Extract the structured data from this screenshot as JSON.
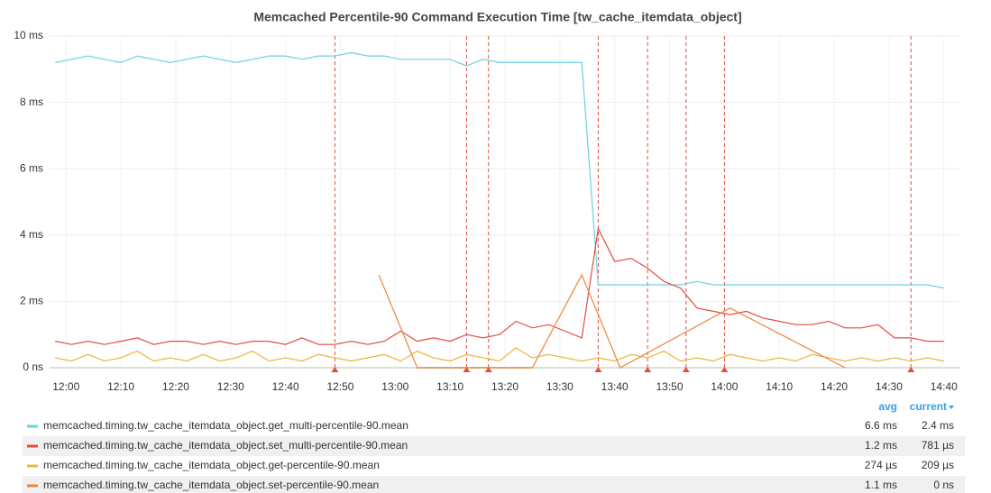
{
  "chart_data": {
    "type": "line",
    "title": "Memcached Percentile-90 Command Execution Time [tw_cache_itemdata_object]",
    "x": [
      "11:58",
      "12:01",
      "12:04",
      "12:07",
      "12:10",
      "12:13",
      "12:16",
      "12:19",
      "12:22",
      "12:25",
      "12:28",
      "12:31",
      "12:34",
      "12:37",
      "12:40",
      "12:43",
      "12:46",
      "12:49",
      "12:52",
      "12:55",
      "12:58",
      "13:01",
      "13:04",
      "13:07",
      "13:10",
      "13:13",
      "13:16",
      "13:19",
      "13:22",
      "13:25",
      "13:28",
      "13:31",
      "13:34",
      "13:37",
      "13:40",
      "13:43",
      "13:46",
      "13:49",
      "13:52",
      "13:55",
      "13:58",
      "14:01",
      "14:04",
      "14:07",
      "14:10",
      "14:13",
      "14:16",
      "14:19",
      "14:22",
      "14:25",
      "14:28",
      "14:31",
      "14:34",
      "14:37",
      "14:40"
    ],
    "series": [
      {
        "name": "memcached.timing.tw_cache_itemdata_object.get_multi-percentile-90.mean",
        "color": "#6ed0e0",
        "values": [
          9.2,
          9.3,
          9.4,
          9.3,
          9.2,
          9.4,
          9.3,
          9.2,
          9.3,
          9.4,
          9.3,
          9.2,
          9.3,
          9.4,
          9.4,
          9.3,
          9.4,
          9.4,
          9.5,
          9.4,
          9.4,
          9.3,
          9.3,
          9.3,
          9.3,
          9.1,
          9.3,
          9.2,
          9.2,
          9.2,
          9.2,
          9.2,
          9.2,
          2.5,
          2.5,
          2.5,
          2.5,
          2.5,
          2.5,
          2.6,
          2.5,
          2.5,
          2.5,
          2.5,
          2.5,
          2.5,
          2.5,
          2.5,
          2.5,
          2.5,
          2.5,
          2.5,
          2.5,
          2.5,
          2.4
        ],
        "avg": "6.6 ms",
        "current": "2.4 ms"
      },
      {
        "name": "memcached.timing.tw_cache_itemdata_object.set_multi-percentile-90.mean",
        "color": "#e24d42",
        "values": [
          0.8,
          0.7,
          0.8,
          0.7,
          0.8,
          0.9,
          0.7,
          0.8,
          0.8,
          0.7,
          0.8,
          0.7,
          0.8,
          0.8,
          0.7,
          0.9,
          0.7,
          0.7,
          0.8,
          0.7,
          0.8,
          1.1,
          0.8,
          0.9,
          0.8,
          1.0,
          0.9,
          1.0,
          1.4,
          1.2,
          1.3,
          1.1,
          0.9,
          4.2,
          3.2,
          3.3,
          3.0,
          2.6,
          2.4,
          1.8,
          1.7,
          1.6,
          1.7,
          1.5,
          1.4,
          1.3,
          1.3,
          1.4,
          1.2,
          1.2,
          1.3,
          0.9,
          0.9,
          0.8,
          0.8
        ],
        "avg": "1.2 ms",
        "current": "781 µs"
      },
      {
        "name": "memcached.timing.tw_cache_itemdata_object.get-percentile-90.mean",
        "color": "#eab839",
        "values": [
          0.3,
          0.2,
          0.4,
          0.2,
          0.3,
          0.5,
          0.2,
          0.3,
          0.2,
          0.4,
          0.2,
          0.3,
          0.5,
          0.2,
          0.3,
          0.2,
          0.4,
          0.3,
          0.2,
          0.3,
          0.4,
          0.2,
          0.5,
          0.3,
          0.2,
          0.4,
          0.3,
          0.2,
          0.6,
          0.3,
          0.4,
          0.3,
          0.2,
          0.3,
          0.2,
          0.4,
          0.3,
          0.5,
          0.2,
          0.3,
          0.2,
          0.4,
          0.3,
          0.2,
          0.3,
          0.2,
          0.4,
          0.3,
          0.2,
          0.3,
          0.2,
          0.3,
          0.2,
          0.3,
          0.2
        ],
        "avg": "274 µs",
        "current": "209 µs"
      },
      {
        "name": "memcached.timing.tw_cache_itemdata_object.set-percentile-90.mean",
        "color": "#ef843c",
        "x": [
          "12:57",
          "13:04",
          "13:25",
          "13:34",
          "13:41",
          "14:01",
          "14:22"
        ],
        "values": [
          2.8,
          0,
          0,
          2.8,
          0,
          1.8,
          0
        ],
        "avg": "1.1 ms",
        "current": "0 ns"
      }
    ],
    "legend_columns": [
      "avg",
      "current"
    ],
    "annotations": [
      "12:49",
      "13:13",
      "13:17",
      "13:37",
      "13:46",
      "13:53",
      "14:00",
      "14:34"
    ],
    "xlim": [
      "11:57",
      "14:43"
    ],
    "xticks": [
      "12:00",
      "12:10",
      "12:20",
      "12:30",
      "12:40",
      "12:50",
      "13:00",
      "13:10",
      "13:20",
      "13:30",
      "13:40",
      "13:50",
      "14:00",
      "14:10",
      "14:20",
      "14:30",
      "14:40"
    ],
    "ylim": [
      0,
      10
    ],
    "yticks": [
      {
        "value": 0,
        "label": "0 ns"
      },
      {
        "value": 2,
        "label": "2 ms"
      },
      {
        "value": 4,
        "label": "4 ms"
      },
      {
        "value": 6,
        "label": "6 ms"
      },
      {
        "value": 8,
        "label": "8 ms"
      },
      {
        "value": 10,
        "label": "10 ms"
      }
    ],
    "grid": true
  }
}
